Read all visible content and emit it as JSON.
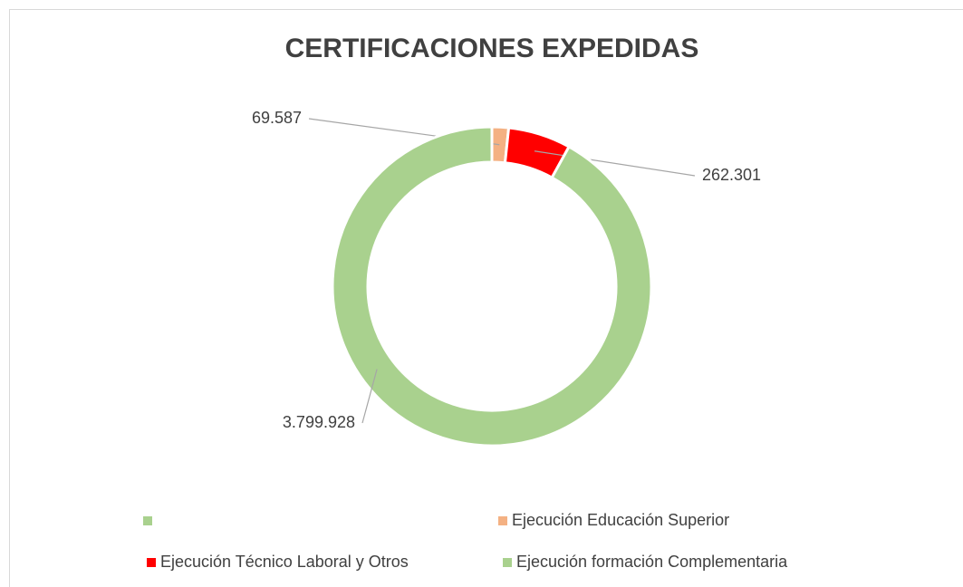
{
  "chart_data": {
    "type": "donut",
    "title": "CERTIFICACIONES EXPEDIDAS",
    "categories": [
      null,
      "Ejecución Educación Superior",
      "Ejecución Técnico Laboral y Otros",
      "Ejecución formación Complementaria"
    ],
    "values": [
      null,
      69587,
      262301,
      3799928
    ],
    "value_labels": [
      null,
      "69.587",
      "262.301",
      "3.799.928"
    ],
    "colors": [
      "#a9d18e",
      "#f4b183",
      "#ff0000",
      "#a9d18e"
    ],
    "legend": "bottom"
  }
}
